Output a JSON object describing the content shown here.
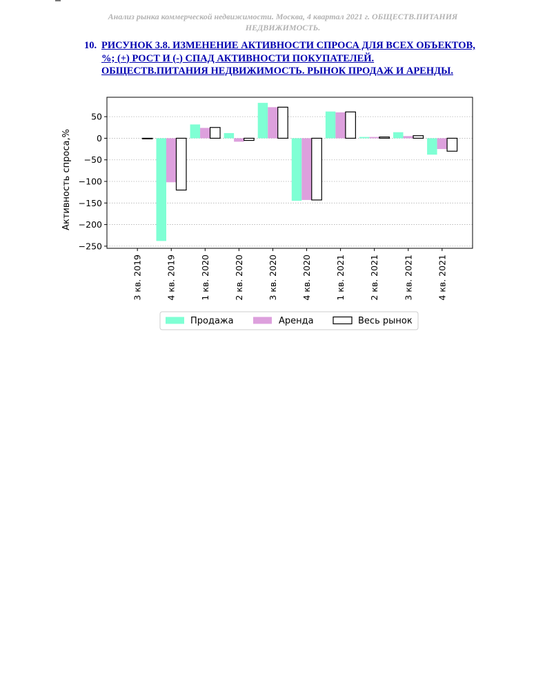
{
  "header": {
    "line1": "Анализ рынка коммерческой недвижимости.  Москва,  4 квартал 2021 г.  ОБЩЕСТВ.ПИТАНИЯ",
    "line2": "НЕДВИЖИМОСТЬ."
  },
  "figure": {
    "number": "10.",
    "title_lines": [
      "РИСУНОК 3.8. ИЗМЕНЕНИЕ АКТИВНОСТИ СПРОСА ДЛЯ ВСЕХ ОБЪЕКТОВ,",
      "%; (+) РОСТ И (-) СПАД АКТИВНОСТИ ПОКУПАТЕЛЕЙ.",
      "ОБЩЕСТВ.ПИТАНИЯ НЕДВИЖИМОСТЬ. РЫНОК ПРОДАЖ И АРЕНДЫ."
    ]
  },
  "chart_data": {
    "type": "bar",
    "ylabel": "Активность спроса,%",
    "xlabel": "",
    "ylim": [
      -255,
      95
    ],
    "yticks": [
      50,
      0,
      -50,
      -100,
      -150,
      -200,
      -250
    ],
    "ytick_labels": [
      "50",
      "0",
      "−50",
      "−100",
      "−150",
      "−200",
      "−250"
    ],
    "grid": "horizontal dotted",
    "legend_position": "bottom-center",
    "categories": [
      "3 кв. 2019",
      "4 кв. 2019",
      "1 кв. 2020",
      "2 кв. 2020",
      "3 кв. 2020",
      "4 кв. 2020",
      "1 кв. 2021",
      "2 кв. 2021",
      "3 кв. 2021",
      "4 кв. 2021"
    ],
    "series": [
      {
        "name": "Продажа",
        "color": "#7fffd4",
        "values": [
          null,
          -238,
          32,
          12,
          82,
          -145,
          62,
          3,
          14,
          -38
        ]
      },
      {
        "name": "Аренда",
        "color": "#dda0dd",
        "values": [
          null,
          -102,
          24,
          -8,
          72,
          -143,
          60,
          3,
          5,
          -25
        ]
      },
      {
        "name": "Весь рынок",
        "color": "#ffffff",
        "outline": "#000000",
        "values": [
          -1,
          -120,
          25,
          -5,
          72,
          -143,
          61,
          3,
          6,
          -30
        ]
      }
    ]
  }
}
